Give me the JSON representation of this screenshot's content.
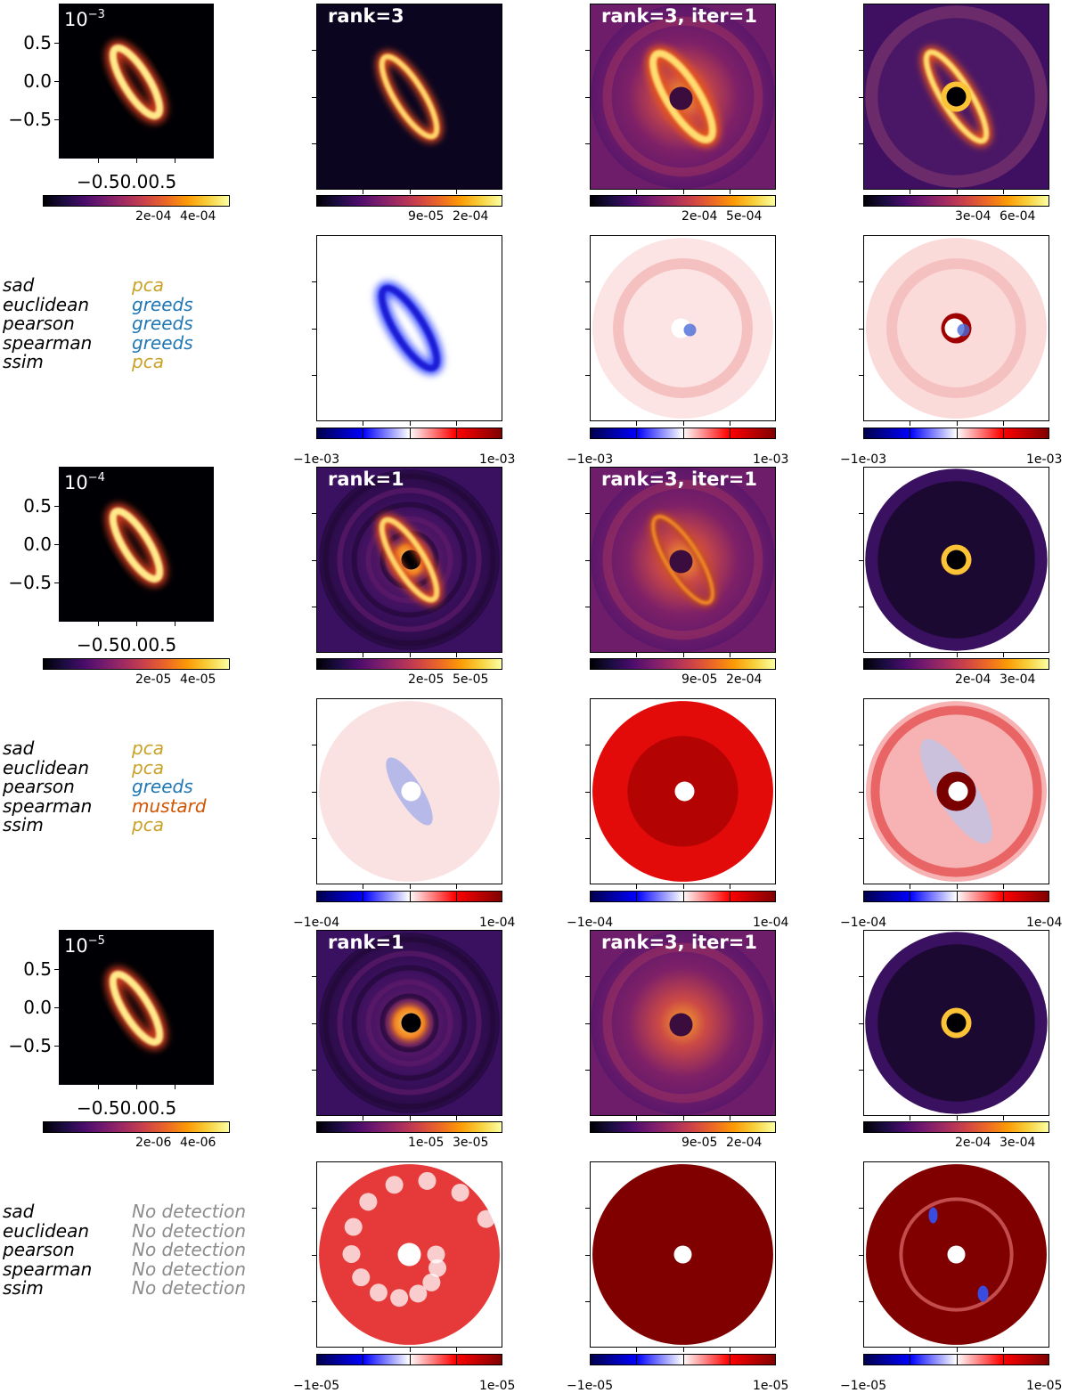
{
  "rows": [
    {
      "exp_base": "10",
      "exp_power": "−3",
      "top_titles": [
        "rank=3",
        "rank=3, iter=1"
      ],
      "top_cbar_ticks": [
        [
          "2e-04",
          "4e-04"
        ],
        [
          "9e-05",
          "2e-04"
        ],
        [
          "2e-04",
          "5e-04"
        ],
        [
          "3e-04",
          "6e-04"
        ]
      ],
      "resid_cbar_ticks": [
        "−1e-03",
        "1e-03"
      ],
      "metrics": [
        {
          "metric": "sad",
          "winner": "pca"
        },
        {
          "metric": "euclidean",
          "winner": "greeds"
        },
        {
          "metric": "pearson",
          "winner": "greeds"
        },
        {
          "metric": "spearman",
          "winner": "greeds"
        },
        {
          "metric": "ssim",
          "winner": "pca"
        }
      ]
    },
    {
      "exp_base": "10",
      "exp_power": "−4",
      "top_titles": [
        "rank=1",
        "rank=3, iter=1"
      ],
      "top_cbar_ticks": [
        [
          "2e-05",
          "4e-05"
        ],
        [
          "2e-05",
          "5e-05"
        ],
        [
          "9e-05",
          "2e-04"
        ],
        [
          "2e-04",
          "3e-04"
        ]
      ],
      "resid_cbar_ticks": [
        "−1e-04",
        "1e-04"
      ],
      "metrics": [
        {
          "metric": "sad",
          "winner": "pca"
        },
        {
          "metric": "euclidean",
          "winner": "pca"
        },
        {
          "metric": "pearson",
          "winner": "greeds"
        },
        {
          "metric": "spearman",
          "winner": "mustard"
        },
        {
          "metric": "ssim",
          "winner": "pca"
        }
      ]
    },
    {
      "exp_base": "10",
      "exp_power": "−5",
      "top_titles": [
        "rank=1",
        "rank=3, iter=1"
      ],
      "top_cbar_ticks": [
        [
          "2e-06",
          "4e-06"
        ],
        [
          "1e-05",
          "3e-05"
        ],
        [
          "9e-05",
          "2e-04"
        ],
        [
          "2e-04",
          "3e-04"
        ]
      ],
      "resid_cbar_ticks": [
        "−1e-05",
        "1e-05"
      ],
      "metrics": [
        {
          "metric": "sad",
          "winner": "No detection"
        },
        {
          "metric": "euclidean",
          "winner": "No detection"
        },
        {
          "metric": "pearson",
          "winner": "No detection"
        },
        {
          "metric": "spearman",
          "winner": "No detection"
        },
        {
          "metric": "ssim",
          "winner": "No detection"
        }
      ]
    }
  ],
  "axis": {
    "y_ticks": [
      "0.5",
      "0.0",
      "−0.5"
    ],
    "x_ticks": [
      "−0.5",
      "0.0",
      "0.5"
    ]
  },
  "colors": {
    "pca": "#c9a227",
    "greeds": "#1f77b4",
    "mustard": "#d35400",
    "none": "#8c8c8c",
    "colormap_top": "inferno",
    "colormap_residual": "seismic"
  }
}
